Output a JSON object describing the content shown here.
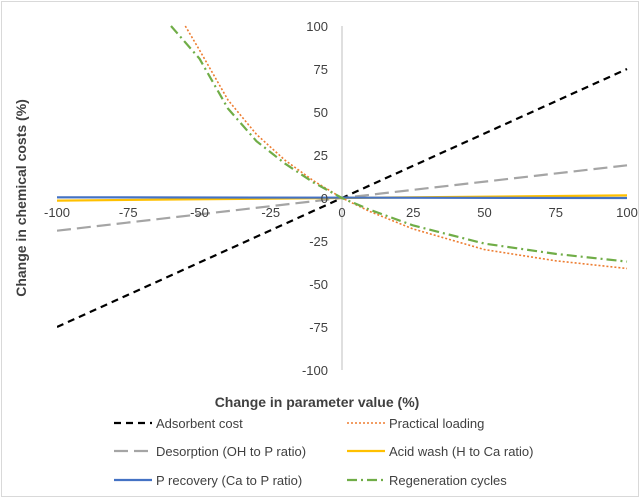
{
  "chart_data": {
    "type": "line",
    "title": "",
    "xlabel": "Change in parameter value (%)",
    "ylabel": "Change in chemical costs (%)",
    "xlim": [
      -100,
      100
    ],
    "ylim": [
      -100,
      100
    ],
    "x_ticks": [
      -100,
      -75,
      -50,
      -25,
      0,
      25,
      50,
      75,
      100
    ],
    "y_ticks": [
      -100,
      -75,
      -50,
      -25,
      0,
      25,
      50,
      75,
      100
    ],
    "grid": false,
    "legend_position": "bottom",
    "series": [
      {
        "name": "Adsorbent cost",
        "color": "#000000",
        "dash": "dash",
        "x": [
          -100,
          100
        ],
        "y": [
          -75,
          75
        ]
      },
      {
        "name": "Practical loading",
        "color": "#ED7D31",
        "dash": "dot",
        "x": [
          -55,
          -50,
          -40,
          -30,
          -20,
          -10,
          0,
          10,
          25,
          50,
          75,
          100
        ],
        "y": [
          100,
          86,
          57,
          37,
          22,
          10,
          0,
          -8,
          -18,
          -30,
          -36.5,
          -41
        ]
      },
      {
        "name": "Desorption (OH to P ratio)",
        "color": "#A5A5A5",
        "dash": "longdash",
        "x": [
          -100,
          100
        ],
        "y": [
          -19,
          19
        ]
      },
      {
        "name": "Acid wash (H to Ca ratio)",
        "color": "#FFC000",
        "dash": "solid",
        "x": [
          -100,
          100
        ],
        "y": [
          -1.5,
          1.5
        ]
      },
      {
        "name": "P recovery (Ca to P ratio)",
        "color": "#4472C4",
        "dash": "solid",
        "x": [
          -100,
          100
        ],
        "y": [
          0.4,
          0
        ]
      },
      {
        "name": "Regeneration cycles",
        "color": "#70AD47",
        "dash": "dashdot",
        "x": [
          -60,
          -50,
          -40,
          -30,
          -20,
          -10,
          0,
          10,
          25,
          50,
          75,
          100
        ],
        "y": [
          100,
          81,
          52,
          33,
          20,
          9,
          0,
          -7,
          -16,
          -26.5,
          -32.5,
          -37
        ]
      }
    ]
  }
}
